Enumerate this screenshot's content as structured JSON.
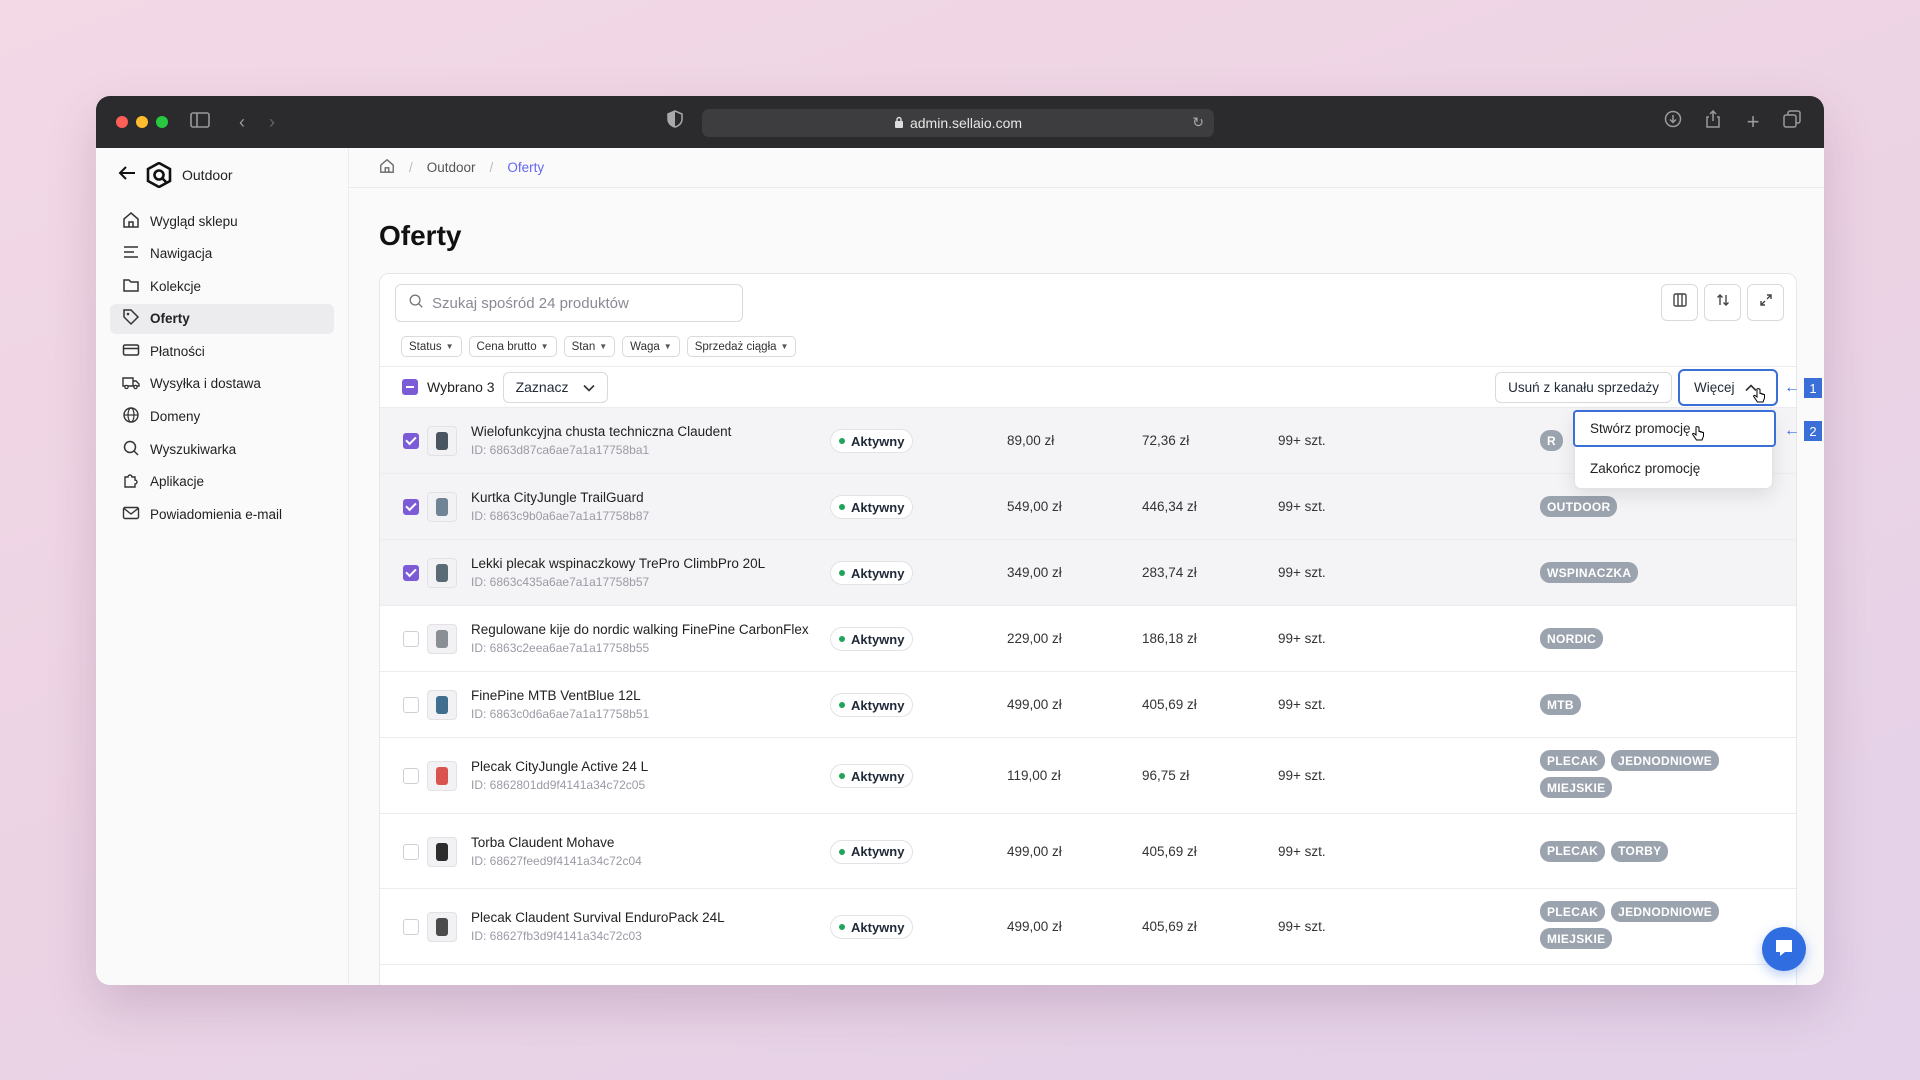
{
  "browser": {
    "url": "admin.sellaio.com"
  },
  "sidebar": {
    "store_name": "Outdoor",
    "items": [
      {
        "label": "Wygląd sklepu",
        "icon": "home-icon"
      },
      {
        "label": "Nawigacja",
        "icon": "menu-icon"
      },
      {
        "label": "Kolekcje",
        "icon": "folder-icon"
      },
      {
        "label": "Oferty",
        "icon": "tag-icon",
        "active": true
      },
      {
        "label": "Płatności",
        "icon": "credit-card-icon"
      },
      {
        "label": "Wysyłka i dostawa",
        "icon": "truck-icon"
      },
      {
        "label": "Domeny",
        "icon": "globe-icon"
      },
      {
        "label": "Wyszukiwarka",
        "icon": "search-icon"
      },
      {
        "label": "Aplikacje",
        "icon": "puzzle-icon"
      },
      {
        "label": "Powiadomienia e-mail",
        "icon": "mail-icon"
      }
    ]
  },
  "breadcrumb": {
    "items": [
      "Outdoor",
      "Oferty"
    ]
  },
  "page": {
    "title": "Oferty"
  },
  "search": {
    "placeholder": "Szukaj spośród 24 produktów"
  },
  "filters": [
    "Status",
    "Cena brutto",
    "Stan",
    "Waga",
    "Sprzedaż ciągła"
  ],
  "bulk": {
    "selected_label": "Wybrano 3",
    "select_dropdown": "Zaznacz",
    "remove_button": "Usuń z kanału sprzedaży",
    "more_button": "Więcej"
  },
  "dropdown": {
    "items": [
      "Stwórz promocję",
      "Zakończ promocję"
    ]
  },
  "annotations": [
    "1",
    "2"
  ],
  "products": [
    {
      "name": "Wielofunkcyjna chusta techniczna Claudent",
      "id": "ID: 6863d87ca6ae7a1a17758ba1",
      "status": "Aktywny",
      "price": "89,00 zł",
      "net": "72,36 zł",
      "stock": "99+ szt.",
      "tags": [
        "R"
      ],
      "selected": true
    },
    {
      "name": "Kurtka CityJungle TrailGuard",
      "id": "ID: 6863c9b0a6ae7a1a17758b87",
      "status": "Aktywny",
      "price": "549,00 zł",
      "net": "446,34 zł",
      "stock": "99+ szt.",
      "tags": [
        "OUTDOOR"
      ],
      "selected": true
    },
    {
      "name": "Lekki plecak wspinaczkowy TrePro ClimbPro 20L",
      "id": "ID: 6863c435a6ae7a1a17758b57",
      "status": "Aktywny",
      "price": "349,00 zł",
      "net": "283,74 zł",
      "stock": "99+ szt.",
      "tags": [
        "WSPINACZKA"
      ],
      "selected": true
    },
    {
      "name": "Regulowane kije do nordic walking FinePine CarbonFlex",
      "id": "ID: 6863c2eea6ae7a1a17758b55",
      "status": "Aktywny",
      "price": "229,00 zł",
      "net": "186,18 zł",
      "stock": "99+ szt.",
      "tags": [
        "NORDIC"
      ],
      "selected": false
    },
    {
      "name": "FinePine MTB VentBlue 12L",
      "id": "ID: 6863c0d6a6ae7a1a17758b51",
      "status": "Aktywny",
      "price": "499,00 zł",
      "net": "405,69 zł",
      "stock": "99+ szt.",
      "tags": [
        "MTB"
      ],
      "selected": false
    },
    {
      "name": "Plecak CityJungle Active 24 L",
      "id": "ID: 6862801dd9f4141a34c72c05",
      "status": "Aktywny",
      "price": "119,00 zł",
      "net": "96,75 zł",
      "stock": "99+ szt.",
      "tags": [
        "PLECAK",
        "JEDNODNIOWE",
        "MIEJSKIE"
      ],
      "selected": false
    },
    {
      "name": "Torba Claudent Mohave",
      "id": "ID: 68627feed9f4141a34c72c04",
      "status": "Aktywny",
      "price": "499,00 zł",
      "net": "405,69 zł",
      "stock": "99+ szt.",
      "tags": [
        "PLECAK",
        "TORBY"
      ],
      "selected": false
    },
    {
      "name": "Plecak Claudent Survival EnduroPack 24L",
      "id": "ID: 68627fb3d9f4141a34c72c03",
      "status": "Aktywny",
      "price": "499,00 zł",
      "net": "405,69 zł",
      "stock": "99+ szt.",
      "tags": [
        "PLECAK",
        "JEDNODNIOWE",
        "MIEJSKIE"
      ],
      "selected": false
    }
  ],
  "colors": {
    "accent": "#7c5cd6",
    "highlight": "#3b6fd8",
    "breadcrumb_active": "#6366f1",
    "status_dot": "#22a35a",
    "tag_bg": "#9ba3ae"
  }
}
